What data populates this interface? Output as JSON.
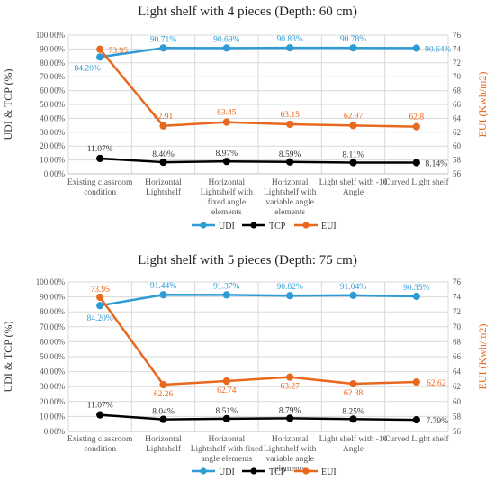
{
  "chart_data": [
    {
      "type": "line",
      "title": "Light shelf with 4 pieces (Depth: 60 cm)",
      "categories": [
        [
          "Existing classroom",
          "condition"
        ],
        [
          "Horizontal",
          "Lightshelf"
        ],
        [
          "Horizontal",
          "Lightshelf with",
          "fixed angle",
          "elements"
        ],
        [
          "Horizontal",
          "Lightshelf with",
          "variable angle",
          "elements"
        ],
        [
          "Light shelf with -10",
          "Angle"
        ],
        [
          "Curved Light shelf"
        ]
      ],
      "ylabel": "UDI & TCP (%)",
      "y2label": "EUI (Kwh/m2)",
      "ylim": [
        0,
        100
      ],
      "yticks": [
        "0.00%",
        "10.00%",
        "20.00%",
        "30.00%",
        "40.00%",
        "50.00%",
        "60.00%",
        "70.00%",
        "80.00%",
        "90.00%",
        "100.00%"
      ],
      "y2lim": [
        56,
        76
      ],
      "y2ticks": [
        "56",
        "58",
        "60",
        "62",
        "64",
        "66",
        "68",
        "70",
        "72",
        "74",
        "76"
      ],
      "grid": true,
      "legend_position": "bottom",
      "series": [
        {
          "name": "UDI",
          "axis": "left",
          "color": "#2E9BD6",
          "values": [
            84.2,
            90.71,
            90.69,
            90.83,
            90.78,
            90.64
          ],
          "labels": [
            "84.20%",
            "90.71%",
            "90.69%",
            "90.83%",
            "90.78%",
            "90.64%"
          ]
        },
        {
          "name": "TCP",
          "axis": "left",
          "color": "#000000",
          "values": [
            11.07,
            8.4,
            8.97,
            8.59,
            8.11,
            8.14
          ],
          "labels": [
            "11.07%",
            "8.40%",
            "8.97%",
            "8.59%",
            "8.11%",
            "8.14%"
          ]
        },
        {
          "name": "EUI",
          "axis": "right",
          "color": "#E8681E",
          "values": [
            73.95,
            62.91,
            63.45,
            63.15,
            62.97,
            62.8
          ],
          "labels": [
            "73.95",
            "62.91",
            "63.45",
            "63.15",
            "62.97",
            "62.8"
          ]
        }
      ]
    },
    {
      "type": "line",
      "title": "Light shelf with 5 pieces (Depth: 75 cm)",
      "categories": [
        [
          "Existing classroom",
          "condition"
        ],
        [
          "Horizontal",
          "Lightshelf"
        ],
        [
          "Horizontal",
          "Lightshelf with fixed",
          "angle elements"
        ],
        [
          "Horizontal",
          "Lightshelf with",
          "variable angle",
          "elements"
        ],
        [
          "Light shelf with -10",
          "Angle"
        ],
        [
          "Curved Light shelf"
        ]
      ],
      "ylabel": "UDI & TCP (%)",
      "y2label": "EUI (Kwh/m2)",
      "ylim": [
        0,
        100
      ],
      "yticks": [
        "0.00%",
        "10.00%",
        "20.00%",
        "30.00%",
        "40.00%",
        "50.00%",
        "60.00%",
        "70.00%",
        "80.00%",
        "90.00%",
        "100.00%"
      ],
      "y2lim": [
        56,
        76
      ],
      "y2ticks": [
        "56",
        "58",
        "60",
        "62",
        "64",
        "66",
        "68",
        "70",
        "72",
        "74",
        "76"
      ],
      "grid": true,
      "legend_position": "bottom",
      "series": [
        {
          "name": "UDI",
          "axis": "left",
          "color": "#2E9BD6",
          "values": [
            84.2,
            91.44,
            91.37,
            90.82,
            91.04,
            90.35
          ],
          "labels": [
            "84.20%",
            "91.44%",
            "91.37%",
            "90.82%",
            "91.04%",
            "90.35%"
          ]
        },
        {
          "name": "TCP",
          "axis": "left",
          "color": "#000000",
          "values": [
            11.07,
            8.04,
            8.51,
            8.79,
            8.25,
            7.79
          ],
          "labels": [
            "11.07%",
            "8.04%",
            "8.51%",
            "8.79%",
            "8.25%",
            "7.79%"
          ]
        },
        {
          "name": "EUI",
          "axis": "right",
          "color": "#E8681E",
          "values": [
            73.95,
            62.26,
            62.74,
            63.27,
            62.38,
            62.62
          ],
          "labels": [
            "73.95",
            "62.26",
            "62.74",
            "63.27",
            "62.38",
            "62.62"
          ]
        }
      ]
    }
  ]
}
